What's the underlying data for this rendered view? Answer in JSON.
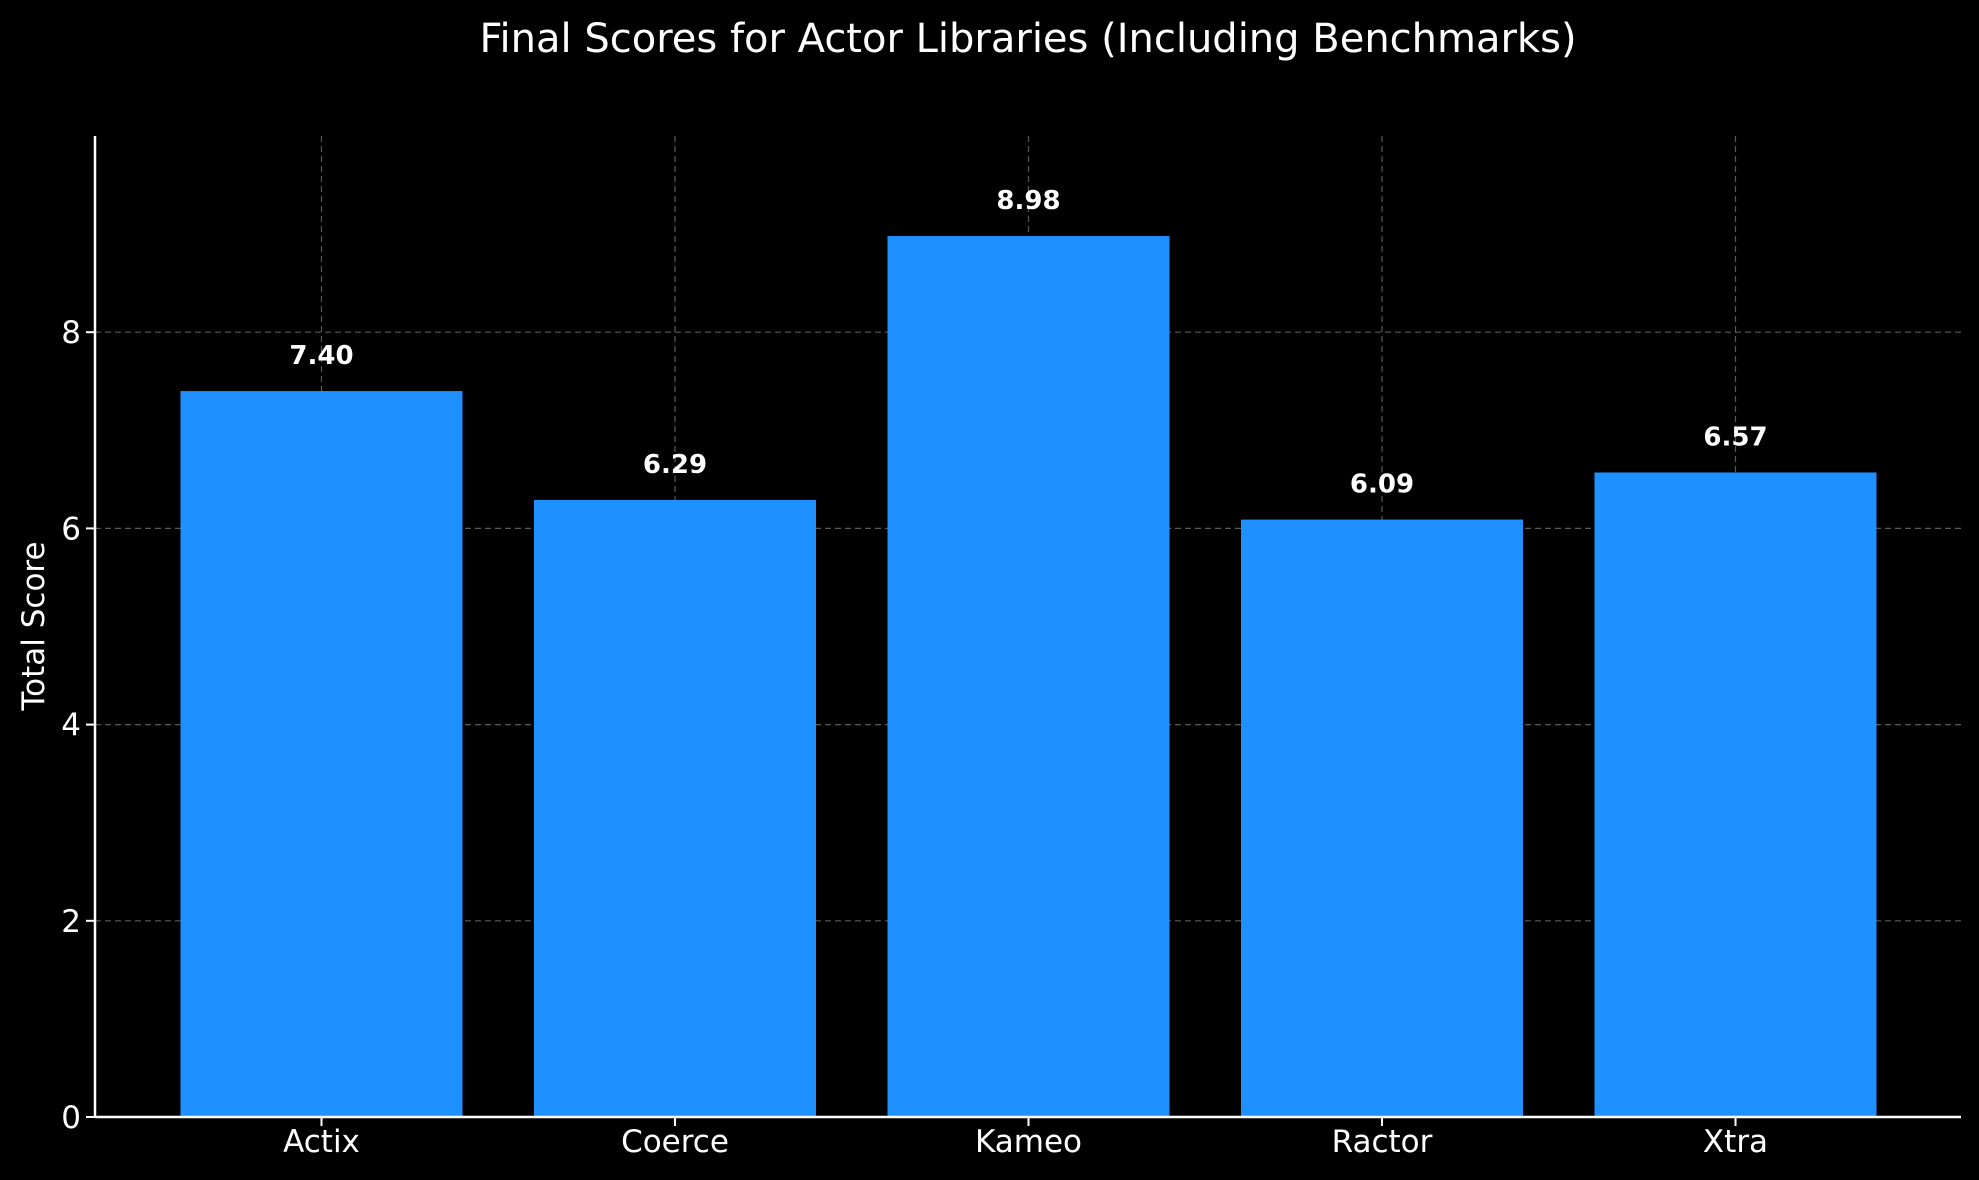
{
  "chart_data": {
    "type": "bar",
    "title": "Final Scores for Actor Libraries (Including Benchmarks)",
    "xlabel": "",
    "ylabel": "Total Score",
    "categories": [
      "Actix",
      "Coerce",
      "Kameo",
      "Ractor",
      "Xtra"
    ],
    "values": [
      7.4,
      6.29,
      8.98,
      6.09,
      6.57
    ],
    "value_labels": [
      "7.40",
      "6.29",
      "8.98",
      "6.09",
      "6.57"
    ],
    "ylim": [
      0,
      10
    ],
    "yticks": [
      0,
      2,
      4,
      6,
      8
    ],
    "grid": true,
    "bar_color": "#1e90ff",
    "background_color": "#000000",
    "text_color": "#ffffff"
  }
}
